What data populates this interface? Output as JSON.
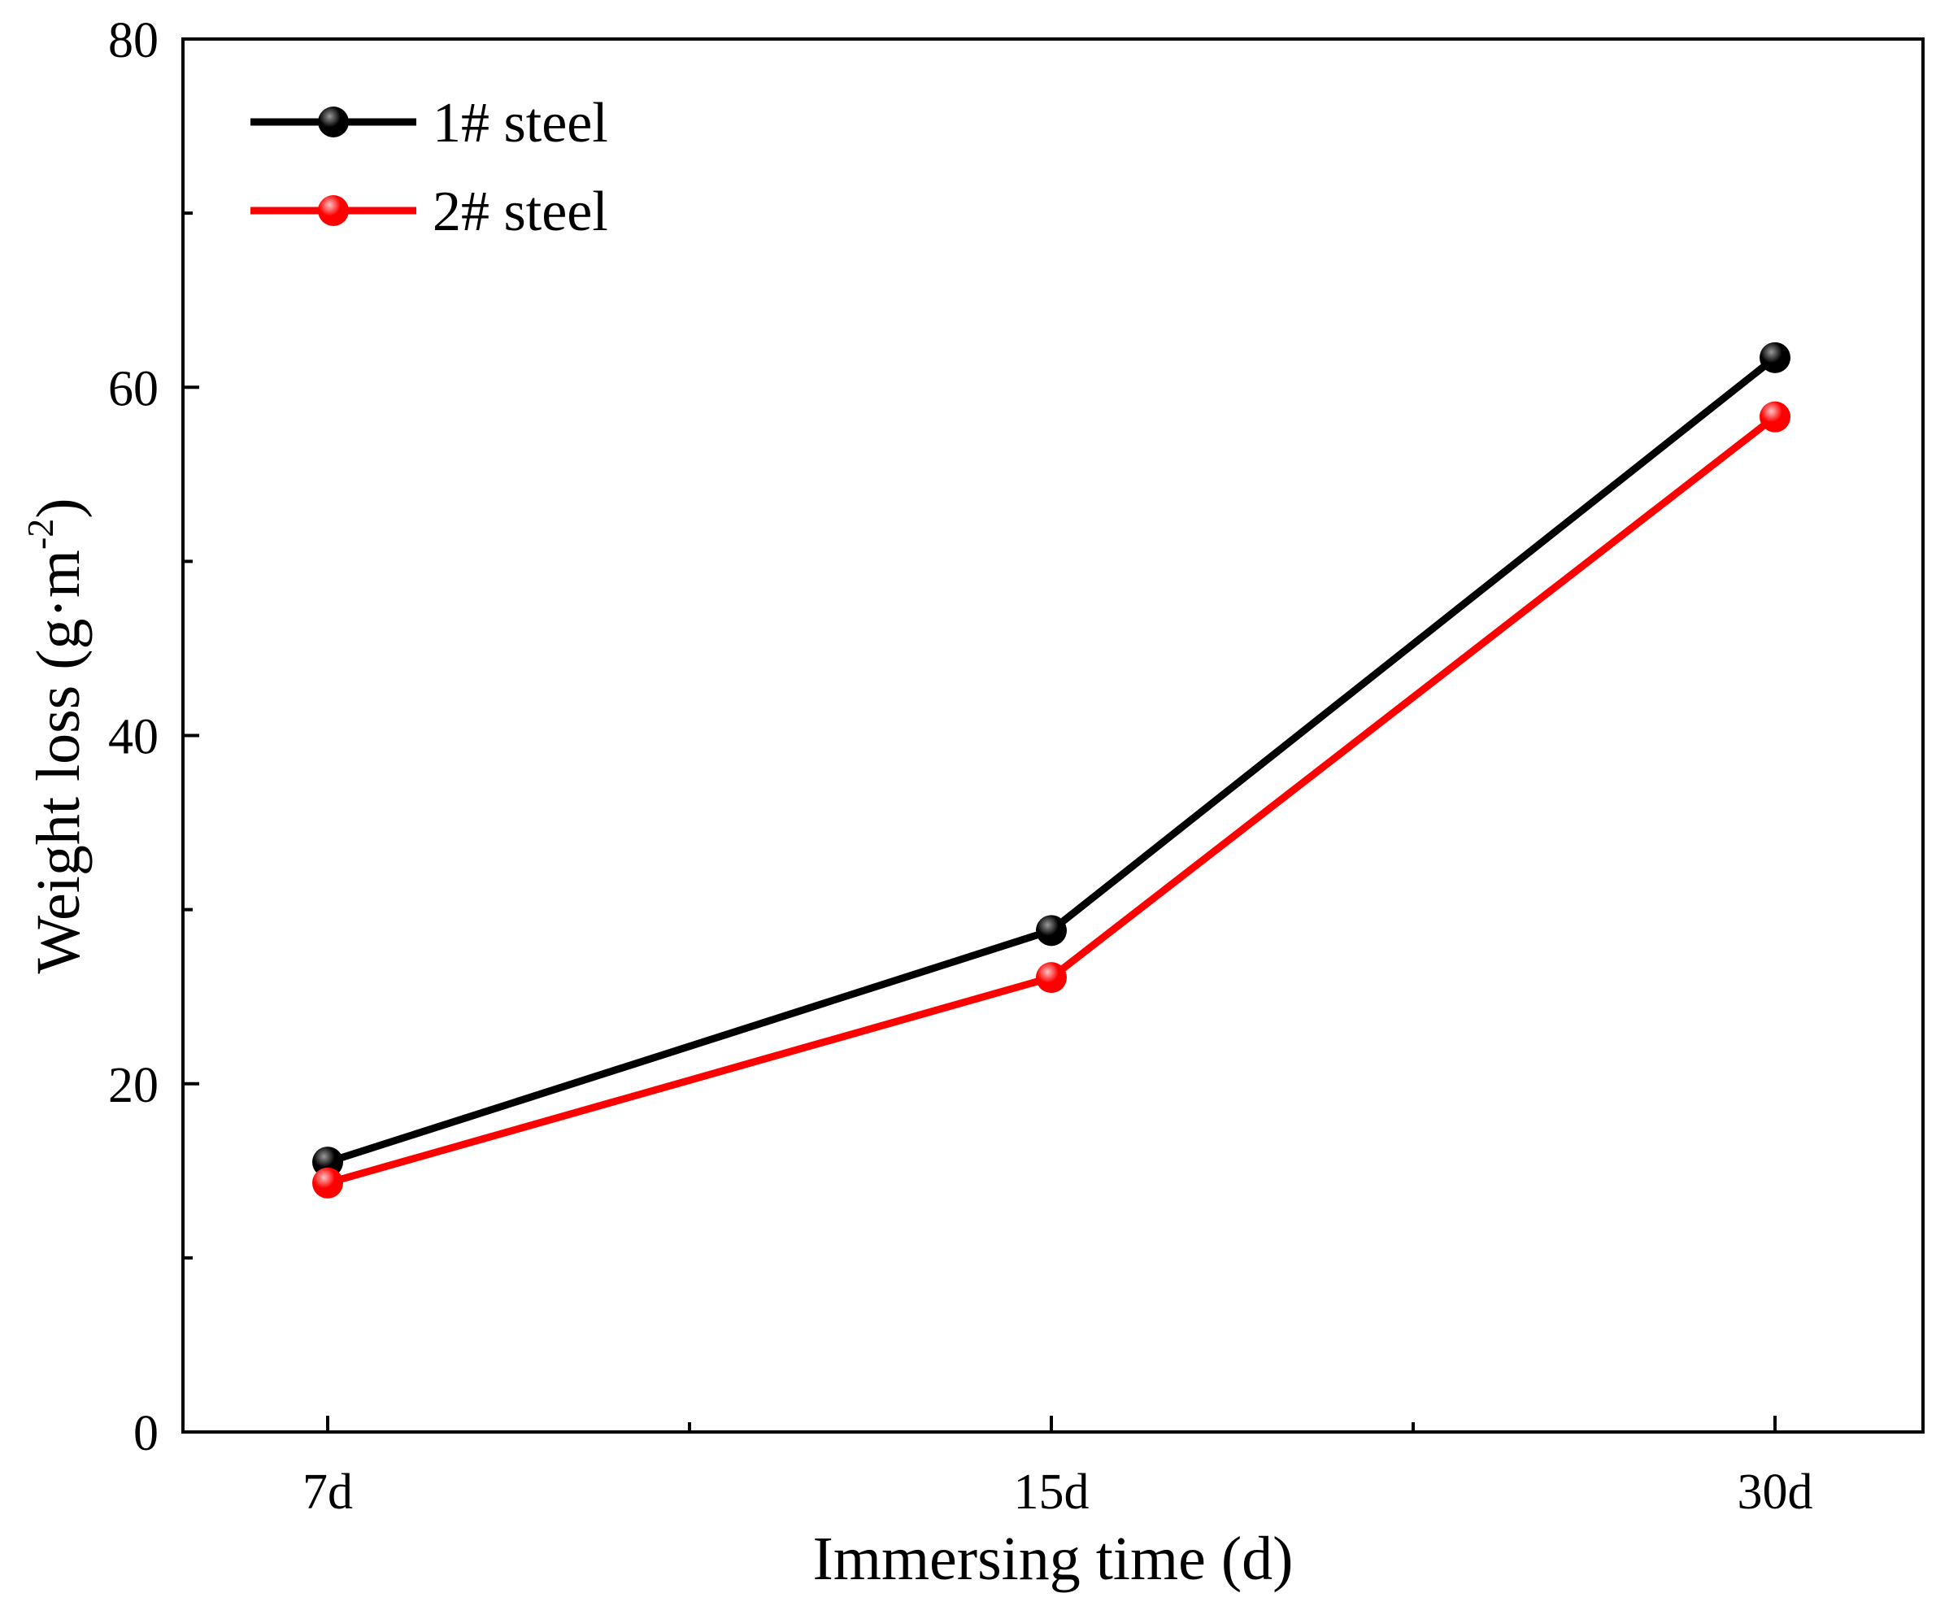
{
  "chart_data": {
    "type": "line",
    "title": "",
    "categories": [
      "7d",
      "15d",
      "30d"
    ],
    "xlabel": "Immersing time (d)",
    "ylabel": {
      "main": "Weight loss (g·m",
      "sup": "-2",
      "close": ")"
    },
    "ylim": [
      0,
      80
    ],
    "yticks": [
      0,
      20,
      40,
      60,
      80
    ],
    "y_minor_ticks": [
      10,
      30,
      50,
      70
    ],
    "grid": false,
    "legend_position": "top-left",
    "series": [
      {
        "name": "1# steel",
        "color": "#000000",
        "highlight": "#9a9a9a",
        "values": [
          15.5,
          28.8,
          61.7
        ]
      },
      {
        "name": "2# steel",
        "color": "#ff0000",
        "highlight": "#ffc4c4",
        "values": [
          14.3,
          26.1,
          58.3
        ]
      }
    ]
  }
}
